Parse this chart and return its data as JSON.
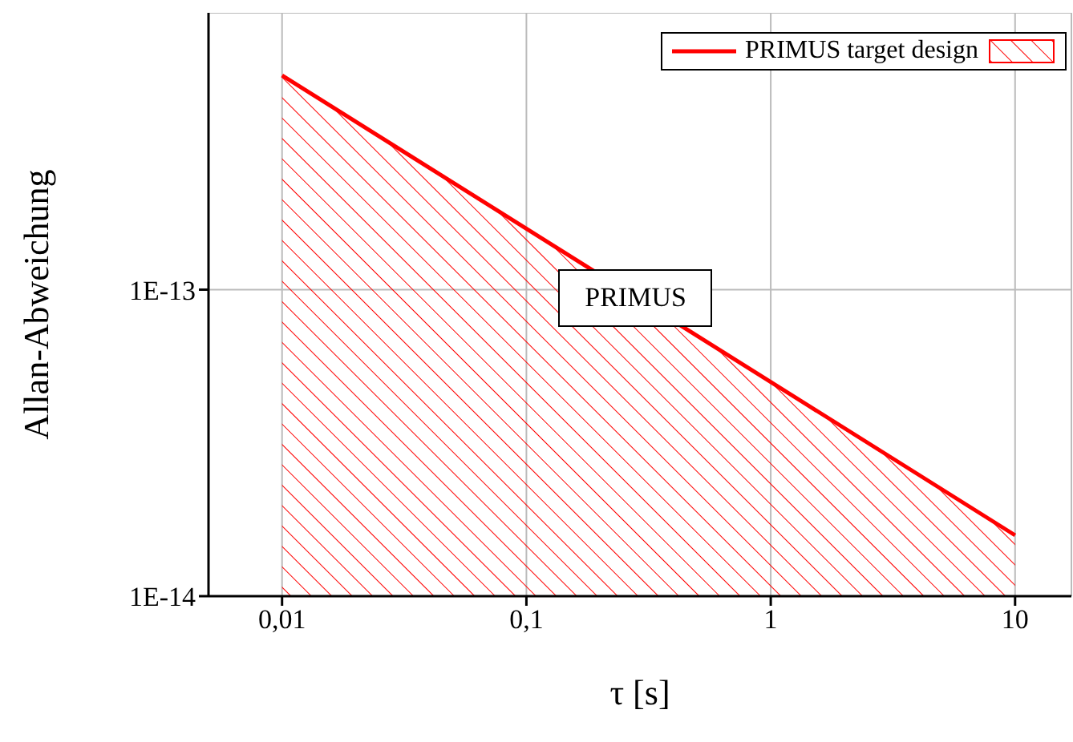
{
  "chart_data": {
    "type": "area",
    "xlabel": "τ [s]",
    "ylabel": "Allan-Abweichung",
    "log": "xy",
    "grid": true,
    "legend": "top right",
    "x": [
      0.01,
      10
    ],
    "series": [
      {
        "name": "PRIMUS target design",
        "color": "#ff0000",
        "values": [
          5e-13,
          1.58e-14
        ]
      }
    ],
    "xlim": [
      0.005,
      17
    ],
    "ylim": [
      1e-14,
      8e-13
    ],
    "xticks": [
      {
        "value": 0.01,
        "label": "0,01"
      },
      {
        "value": 0.1,
        "label": "0,1"
      },
      {
        "value": 1,
        "label": "1"
      },
      {
        "value": 10,
        "label": "10"
      }
    ],
    "yticks": [
      {
        "value": 1e-14,
        "label": "1E-14"
      },
      {
        "value": 1e-13,
        "label": "1E-13"
      }
    ],
    "annotations": [
      "PRIMUS"
    ]
  }
}
